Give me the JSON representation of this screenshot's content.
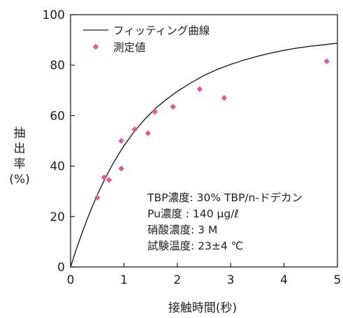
{
  "chart_data": {
    "type": "scatter",
    "xlabel": "接触時間(秒)",
    "ylabel_lines": [
      "抽",
      "出",
      "率",
      "(%)"
    ],
    "xlim": [
      0,
      5
    ],
    "ylim": [
      0,
      100
    ],
    "x_ticks": [
      "0",
      "1",
      "2",
      "3",
      "4",
      "5"
    ],
    "y_ticks": [
      "0",
      "20",
      "40",
      "60",
      "80",
      "100"
    ],
    "grid": false,
    "legend_position": "top-left",
    "series": [
      {
        "name": "フィッティング曲線",
        "kind": "line",
        "color": "#231f20",
        "x": [
          0,
          0.1,
          0.2,
          0.3,
          0.4,
          0.5,
          0.6,
          0.7,
          0.8,
          0.9,
          1.0,
          1.2,
          1.4,
          1.6,
          1.8,
          2.0,
          2.25,
          2.5,
          2.75,
          3.0,
          3.25,
          3.5,
          3.75,
          4.0,
          4.25,
          4.5,
          4.75,
          5.0
        ],
        "y": [
          0,
          6.5,
          12.6,
          18.3,
          23.6,
          28.5,
          33.0,
          37.2,
          41.1,
          44.7,
          48.0,
          53.9,
          58.8,
          63.0,
          66.5,
          69.6,
          72.9,
          75.9,
          78.3,
          80.3,
          82.0,
          83.5,
          84.8,
          85.9,
          86.8,
          87.5,
          88.1,
          88.7
        ]
      },
      {
        "name": "測定値",
        "kind": "scatter",
        "color": "#e05a96",
        "x": [
          0.5,
          0.63,
          0.72,
          0.95,
          0.95,
          1.2,
          1.45,
          1.58,
          1.92,
          2.42,
          2.88,
          4.8
        ],
        "y": [
          27.5,
          35.5,
          34.5,
          50,
          39,
          54.5,
          53,
          61.5,
          63.5,
          70.5,
          67,
          81.5
        ]
      }
    ],
    "annotations": [
      "TBP濃度: 30% TBP/n-ドデカン",
      "Pu濃度  : 140 μg/ℓ",
      "硝酸濃度: 3 M",
      "試験温度: 23±4 ℃"
    ]
  }
}
